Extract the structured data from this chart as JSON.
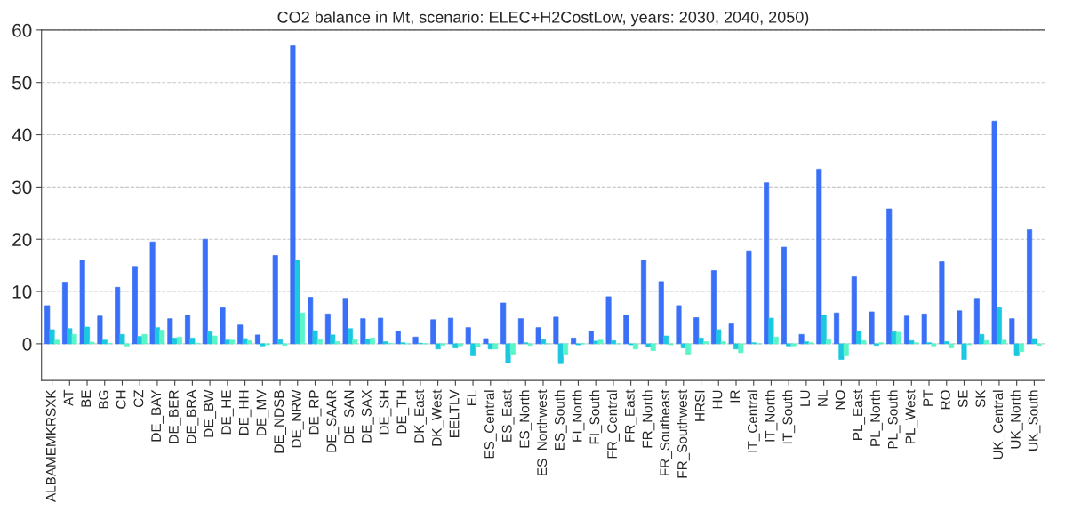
{
  "chart_data": {
    "type": "bar",
    "title": "CO2 balance in Mt, scenario: ELEC+H2CostLow, years: 2030, 2040, 2050)",
    "categories": [
      "ALBAMEMKRSXK",
      "AT",
      "BE",
      "BG",
      "CH",
      "CZ",
      "DE_BAY",
      "DE_BER",
      "DE_BRA",
      "DE_BW",
      "DE_HE",
      "DE_HH",
      "DE_MV",
      "DE_NDSB",
      "DE_NRW",
      "DE_RP",
      "DE_SAAR",
      "DE_SAN",
      "DE_SAX",
      "DE_SH",
      "DE_TH",
      "DK_East",
      "DK_West",
      "EELTLV",
      "EL",
      "ES_Central",
      "ES_East",
      "ES_North",
      "ES_Northwest",
      "ES_South",
      "FI_North",
      "FI_South",
      "FR_Central",
      "FR_East",
      "FR_North",
      "FR_Southeast",
      "FR_Southwest",
      "HRSI",
      "HU",
      "IR",
      "IT_Central",
      "IT_North",
      "IT_South",
      "LU",
      "NL",
      "NO",
      "PL_East",
      "PL_North",
      "PL_South",
      "PL_West",
      "PT",
      "RO",
      "SE",
      "SK",
      "UK_Central",
      "UK_North",
      "UK_South"
    ],
    "series": [
      {
        "color": "#3a6ff7",
        "values": [
          7.3,
          11.8,
          16.0,
          5.3,
          10.8,
          14.8,
          19.5,
          4.8,
          5.5,
          20.0,
          6.9,
          3.6,
          1.7,
          16.9,
          57.0,
          8.9,
          5.7,
          8.7,
          4.8,
          4.9,
          2.4,
          1.3,
          4.6,
          4.9,
          3.1,
          1.0,
          7.8,
          4.8,
          3.1,
          5.1,
          1.1,
          2.4,
          9.0,
          5.5,
          16.0,
          11.9,
          7.3,
          5.0,
          14.0,
          3.8,
          17.8,
          30.8,
          18.5,
          1.8,
          33.4,
          5.9,
          12.8,
          6.1,
          25.8,
          5.3,
          5.7,
          15.7,
          6.3,
          8.7,
          42.6,
          4.8,
          21.8
        ]
      },
      {
        "color": "#1ac8e0",
        "values": [
          2.7,
          2.9,
          3.2,
          0.7,
          1.8,
          1.4,
          3.1,
          1.1,
          1.1,
          2.3,
          0.7,
          1.0,
          -0.4,
          0.8,
          16.0,
          2.5,
          1.7,
          2.9,
          0.9,
          0.4,
          0.2,
          0.1,
          -1.0,
          -0.8,
          -2.3,
          -1.0,
          -3.6,
          0.2,
          0.8,
          -3.8,
          -0.2,
          0.5,
          0.6,
          -0.2,
          -0.6,
          1.5,
          -0.8,
          1.1,
          2.7,
          -1.0,
          0.2,
          4.9,
          -0.4,
          0.4,
          5.5,
          -3.0,
          2.4,
          -0.3,
          2.3,
          0.6,
          0.2,
          0.4,
          -3.0,
          1.8,
          6.9,
          -2.3,
          1.0
        ]
      },
      {
        "color": "#5af5c8",
        "values": [
          0.7,
          1.8,
          0.3,
          0.1,
          -0.4,
          1.8,
          2.6,
          1.3,
          0.1,
          1.5,
          0.7,
          0.6,
          -0.2,
          -0.3,
          5.9,
          0.8,
          0.4,
          0.8,
          1.1,
          0.1,
          0.0,
          0.0,
          -0.3,
          -0.4,
          -0.6,
          -1.0,
          -2.0,
          -0.3,
          0.0,
          -2.0,
          0.0,
          0.7,
          0.0,
          -1.0,
          -1.3,
          -0.2,
          -2.0,
          0.4,
          0.4,
          -1.7,
          0.0,
          1.3,
          -0.4,
          0.2,
          0.8,
          -2.3,
          0.6,
          0.2,
          2.2,
          0.2,
          -0.4,
          -0.8,
          -0.2,
          0.6,
          0.7,
          -1.5,
          -0.3
        ]
      }
    ],
    "ylim": [
      -7,
      60
    ],
    "yticks": [
      0,
      10,
      20,
      30,
      40,
      50,
      60
    ],
    "grid": "y"
  }
}
